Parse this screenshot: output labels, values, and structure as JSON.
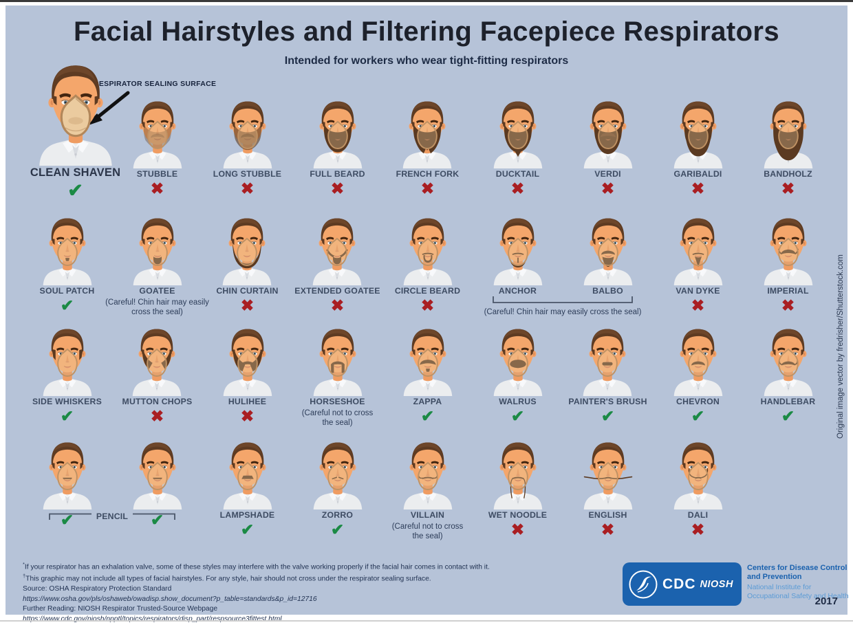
{
  "header": {
    "title": "Facial Hairstyles and Filtering Facepiece Respirators",
    "subtitle": "Intended for workers who wear tight-fitting respirators"
  },
  "annotation": {
    "label": "RESPIRATOR SEALING SURFACE"
  },
  "icons": {
    "check_glyph": "✔",
    "cross_glyph": "✖"
  },
  "colors": {
    "background": "#b6c3d8",
    "approved_green": "#1b8a45",
    "not_approved_red": "#a91e22",
    "logo_blue": "#1b62ae",
    "logo_light_blue": "#5b9bd5"
  },
  "grid": {
    "rows": [
      {
        "cells": [
          {
            "id": "clean-shaven",
            "name": "CLEAN SHAVEN",
            "variant": "clean",
            "mark": "check",
            "large": true
          },
          {
            "id": "stubble",
            "name": "STUBBLE",
            "variant": "stubble",
            "mark": "cross"
          },
          {
            "id": "long-stubble",
            "name": "LONG STUBBLE",
            "variant": "long-stubble",
            "mark": "cross"
          },
          {
            "id": "full-beard",
            "name": "FULL BEARD",
            "variant": "full-beard",
            "mark": "cross"
          },
          {
            "id": "french-fork",
            "name": "FRENCH FORK",
            "variant": "french-fork",
            "mark": "cross"
          },
          {
            "id": "ducktail",
            "name": "DUCKTAIL",
            "variant": "ducktail",
            "mark": "cross"
          },
          {
            "id": "verdi",
            "name": "VERDI",
            "variant": "verdi",
            "mark": "cross"
          },
          {
            "id": "garibaldi",
            "name": "GARIBALDI",
            "variant": "garibaldi",
            "mark": "cross"
          },
          {
            "id": "bandholz",
            "name": "BANDHOLZ",
            "variant": "bandholz",
            "mark": "cross"
          }
        ]
      },
      {
        "cells": [
          {
            "id": "soul-patch",
            "name": "SOUL PATCH",
            "variant": "soul-patch",
            "mark": "check"
          },
          {
            "id": "goatee",
            "name": "GOATEE",
            "variant": "goatee",
            "mark": "none",
            "note": "(Careful! Chin hair may easily cross the seal)"
          },
          {
            "id": "chin-curtain",
            "name": "CHIN CURTAIN",
            "variant": "chin-curtain",
            "mark": "cross"
          },
          {
            "id": "extended-goatee",
            "name": "EXTENDED GOATEE",
            "variant": "extended-goatee",
            "mark": "cross"
          },
          {
            "id": "circle-beard",
            "name": "CIRCLE BEARD",
            "variant": "circle-beard",
            "mark": "cross"
          },
          {
            "id": "anchor",
            "name": "ANCHOR",
            "variant": "anchor",
            "mark": "none",
            "group": "anchor_balbo"
          },
          {
            "id": "balbo",
            "name": "BALBO",
            "variant": "balbo",
            "mark": "none",
            "group": "anchor_balbo"
          },
          {
            "id": "van-dyke",
            "name": "VAN DYKE",
            "variant": "van-dyke",
            "mark": "cross"
          },
          {
            "id": "imperial",
            "name": "IMPERIAL",
            "variant": "imperial",
            "mark": "cross"
          }
        ]
      },
      {
        "cells": [
          {
            "id": "side-whiskers",
            "name": "SIDE WHISKERS",
            "variant": "side-whiskers",
            "mark": "check"
          },
          {
            "id": "mutton-chops",
            "name": "MUTTON CHOPS",
            "variant": "mutton-chops",
            "mark": "cross"
          },
          {
            "id": "hulihee",
            "name": "HULIHEE",
            "variant": "hulihee",
            "mark": "cross"
          },
          {
            "id": "horseshoe",
            "name": "HORSESHOE",
            "variant": "horseshoe",
            "mark": "none",
            "note": "(Careful not to cross the seal)"
          },
          {
            "id": "zappa",
            "name": "ZAPPA",
            "variant": "zappa",
            "mark": "check"
          },
          {
            "id": "walrus",
            "name": "WALRUS",
            "variant": "walrus",
            "mark": "check"
          },
          {
            "id": "painters-brush",
            "name": "PAINTER'S BRUSH",
            "variant": "painters-brush",
            "mark": "check"
          },
          {
            "id": "chevron",
            "name": "CHEVRON",
            "variant": "chevron",
            "mark": "check"
          },
          {
            "id": "handlebar",
            "name": "HANDLEBAR",
            "variant": "handlebar",
            "mark": "check"
          }
        ]
      },
      {
        "cells": [
          {
            "id": "pencil-1",
            "name": "",
            "variant": "pencil",
            "mark": "check",
            "group": "pencil"
          },
          {
            "id": "pencil-2",
            "name": "",
            "variant": "pencil",
            "mark": "check",
            "group": "pencil"
          },
          {
            "id": "lampshade",
            "name": "LAMPSHADE",
            "variant": "lampshade",
            "mark": "check"
          },
          {
            "id": "zorro",
            "name": "ZORRO",
            "variant": "zorro",
            "mark": "check"
          },
          {
            "id": "villain",
            "name": "VILLAIN",
            "variant": "villain",
            "mark": "none",
            "note": "(Careful not to cross the seal)"
          },
          {
            "id": "wet-noodle",
            "name": "WET NOODLE",
            "variant": "wet-noodle",
            "mark": "cross"
          },
          {
            "id": "english",
            "name": "ENGLISH",
            "variant": "english",
            "mark": "cross"
          },
          {
            "id": "dali",
            "name": "DALI",
            "variant": "dali",
            "mark": "cross"
          }
        ]
      }
    ],
    "groups": {
      "anchor_balbo": {
        "note": "(Careful! Chin hair may easily cross the seal)"
      },
      "pencil": {
        "label": "PENCIL"
      }
    }
  },
  "footer": {
    "footnotes": [
      {
        "sup": "*",
        "text": "If your respirator has an exhalation valve, some of these styles may interfere with the valve working properly if the facial hair comes in contact with it."
      },
      {
        "sup": "†",
        "text": "This graphic may not include all types of facial hairstyles. For any style, hair should not cross under the respirator sealing surface."
      }
    ],
    "source_label": "Source: OSHA Respiratory Protection Standard",
    "source_url": "https://www.osha.gov/pls/oshaweb/owadisp.show_document?p_table=standards&p_id=12716",
    "further_label": "Further Reading: NIOSH Respirator Trusted-Source Webpage",
    "further_url": "https://www.cdc.gov/niosh/npptl/topics/respirators/disp_part/respsource3fittest.html"
  },
  "logo": {
    "cdc": "CDC",
    "niosh": "NIOSH",
    "org_bold": "Centers for Disease Control and Prevention",
    "org_regular": "National Institute for Occupational Safety and Health"
  },
  "credit": "Original image vector by fredrisher/Shutterstock.com",
  "year": "2017"
}
